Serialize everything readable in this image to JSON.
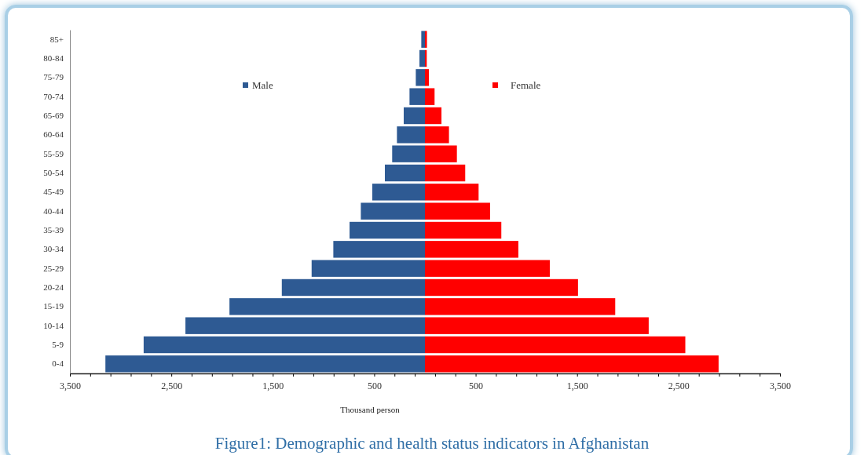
{
  "chart_data": {
    "type": "bar",
    "orientation": "horizontal",
    "stacked": true,
    "categories": [
      "85+",
      "80-84",
      "75-79",
      "70-74",
      "65-69",
      "60-64",
      "55-59",
      "50-54",
      "45-49",
      "40-44",
      "35-39",
      "30-34",
      "25-29",
      "20-24",
      "15-19",
      "10-14",
      "5-9",
      "0-4"
    ],
    "series": [
      {
        "name": "Male",
        "color": "#2e5a93",
        "values": [
          -36,
          -54,
          -90,
          -152,
          -209,
          -276,
          -323,
          -395,
          -519,
          -632,
          -743,
          -903,
          -1117,
          -1411,
          -1927,
          -2361,
          -2773,
          -3150
        ]
      },
      {
        "name": "Female",
        "color": "#ff0000",
        "values": [
          20,
          18,
          39,
          95,
          163,
          237,
          315,
          397,
          529,
          642,
          753,
          921,
          1231,
          1509,
          1876,
          2206,
          2567,
          2895
        ]
      }
    ],
    "xlim": [
      -3500,
      3500
    ],
    "xticks": [
      {
        "value": -3500,
        "label": "3,500"
      },
      {
        "value": -3300,
        "label": null
      },
      {
        "value": -3100,
        "label": null
      },
      {
        "value": -2900,
        "label": null
      },
      {
        "value": -2700,
        "label": null
      },
      {
        "value": -2500,
        "label": "2,500"
      },
      {
        "value": -2300,
        "label": null
      },
      {
        "value": -2100,
        "label": null
      },
      {
        "value": -1900,
        "label": null
      },
      {
        "value": -1700,
        "label": null
      },
      {
        "value": -1500,
        "label": "1,500"
      },
      {
        "value": -1300,
        "label": null
      },
      {
        "value": -1100,
        "label": null
      },
      {
        "value": -900,
        "label": null
      },
      {
        "value": -700,
        "label": null
      },
      {
        "value": -500,
        "label": "500"
      },
      {
        "value": -300,
        "label": null
      },
      {
        "value": -100,
        "label": null
      },
      {
        "value": 100,
        "label": null
      },
      {
        "value": 300,
        "label": null
      },
      {
        "value": 500,
        "label": "500"
      },
      {
        "value": 700,
        "label": null
      },
      {
        "value": 900,
        "label": null
      },
      {
        "value": 1100,
        "label": null
      },
      {
        "value": 1300,
        "label": null
      },
      {
        "value": 1500,
        "label": "1,500"
      },
      {
        "value": 1700,
        "label": null
      },
      {
        "value": 1900,
        "label": null
      },
      {
        "value": 2100,
        "label": null
      },
      {
        "value": 2300,
        "label": null
      },
      {
        "value": 2500,
        "label": "2,500"
      },
      {
        "value": 2700,
        "label": null
      },
      {
        "value": 2900,
        "label": null
      },
      {
        "value": 3100,
        "label": null
      },
      {
        "value": 3300,
        "label": null
      },
      {
        "value": 3500,
        "label": "3,500"
      }
    ],
    "xlabel": "Thousand person",
    "title": "Figure1: Demographic and health status indicators in Afghanistan",
    "legend": "top",
    "grid": false
  }
}
